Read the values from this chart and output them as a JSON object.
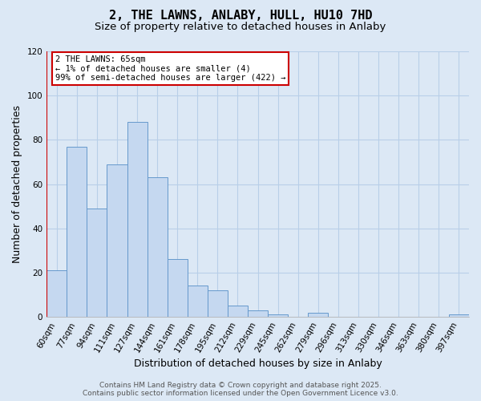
{
  "title": "2, THE LAWNS, ANLABY, HULL, HU10 7HD",
  "subtitle": "Size of property relative to detached houses in Anlaby",
  "xlabel": "Distribution of detached houses by size in Anlaby",
  "ylabel": "Number of detached properties",
  "bar_color": "#c5d8f0",
  "bar_edge_color": "#6699cc",
  "categories": [
    "60sqm",
    "77sqm",
    "94sqm",
    "111sqm",
    "127sqm",
    "144sqm",
    "161sqm",
    "178sqm",
    "195sqm",
    "212sqm",
    "229sqm",
    "245sqm",
    "262sqm",
    "279sqm",
    "296sqm",
    "313sqm",
    "330sqm",
    "346sqm",
    "363sqm",
    "380sqm",
    "397sqm"
  ],
  "values": [
    21,
    77,
    49,
    69,
    88,
    63,
    26,
    14,
    12,
    5,
    3,
    1,
    0,
    2,
    0,
    0,
    0,
    0,
    0,
    0,
    1
  ],
  "ylim": [
    0,
    120
  ],
  "yticks": [
    0,
    20,
    40,
    60,
    80,
    100,
    120
  ],
  "annotation_title": "2 THE LAWNS: 65sqm",
  "annotation_line1": "← 1% of detached houses are smaller (4)",
  "annotation_line2": "99% of semi-detached houses are larger (422) →",
  "annotation_box_facecolor": "#ffffff",
  "annotation_box_edgecolor": "#cc0000",
  "red_line_color": "#cc0000",
  "footer_line1": "Contains HM Land Registry data © Crown copyright and database right 2025.",
  "footer_line2": "Contains public sector information licensed under the Open Government Licence v3.0.",
  "background_color": "#dce8f5",
  "plot_background_color": "#dce8f5",
  "grid_color": "#b8cfe8",
  "title_fontsize": 11,
  "subtitle_fontsize": 9.5,
  "axis_label_fontsize": 9,
  "tick_fontsize": 7.5,
  "annotation_fontsize": 7.5,
  "footer_fontsize": 6.5
}
